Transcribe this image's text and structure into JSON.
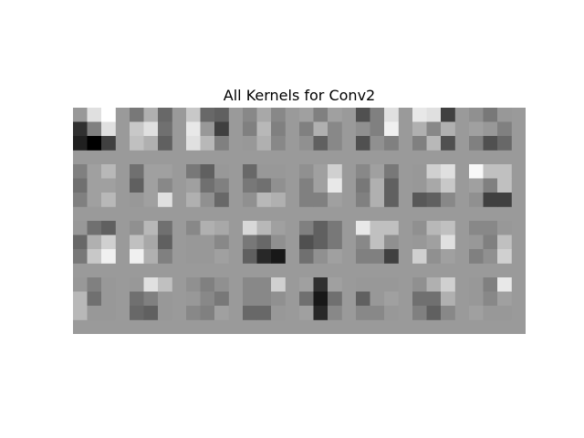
{
  "chart_data": {
    "type": "heatmap",
    "title": "All Kernels for Conv2",
    "colormap": "gray",
    "grid": {
      "rows": 4,
      "cols": 8
    },
    "kernel_size": [
      3,
      3
    ],
    "value_range": [
      0,
      255
    ],
    "background_value": 154,
    "kernels": [
      [
        [
          [
            152,
            224,
            255
          ],
          [
            48,
            128,
            224
          ],
          [
            32,
            0,
            64
          ]
        ],
        [
          [
            120,
            176,
            104
          ],
          [
            200,
            224,
            112
          ],
          [
            192,
            176,
            96
          ]
        ],
        [
          [
            200,
            104,
            96
          ],
          [
            232,
            152,
            64
          ],
          [
            224,
            184,
            128
          ]
        ],
        [
          [
            136,
            168,
            136
          ],
          [
            128,
            184,
            128
          ],
          [
            152,
            176,
            136
          ]
        ],
        [
          [
            160,
            128,
            160
          ],
          [
            128,
            176,
            136
          ],
          [
            144,
            96,
            136
          ]
        ],
        [
          [
            80,
            128,
            224
          ],
          [
            144,
            128,
            240
          ],
          [
            80,
            144,
            128
          ]
        ],
        [
          [
            232,
            224,
            64
          ],
          [
            176,
            136,
            176
          ],
          [
            128,
            184,
            80
          ]
        ],
        [
          [
            144,
            120,
            152
          ],
          [
            160,
            152,
            128
          ],
          [
            128,
            80,
            104
          ]
        ]
      ],
      [
        [
          [
            128,
            160,
            184
          ],
          [
            112,
            160,
            160
          ],
          [
            128,
            160,
            184
          ]
        ],
        [
          [
            112,
            160,
            160
          ],
          [
            96,
            160,
            136
          ],
          [
            152,
            160,
            224
          ]
        ],
        [
          [
            120,
            96,
            152
          ],
          [
            160,
            112,
            128
          ],
          [
            176,
            144,
            104
          ]
        ],
        [
          [
            104,
            152,
            152
          ],
          [
            120,
            112,
            144
          ],
          [
            144,
            184,
            176
          ]
        ],
        [
          [
            144,
            160,
            208
          ],
          [
            128,
            160,
            232
          ],
          [
            128,
            128,
            160
          ]
        ],
        [
          [
            136,
            160,
            120
          ],
          [
            120,
            176,
            96
          ],
          [
            128,
            176,
            96
          ]
        ],
        [
          [
            152,
            208,
            224
          ],
          [
            152,
            168,
            200
          ],
          [
            88,
            96,
            136
          ]
        ],
        [
          [
            248,
            192,
            192
          ],
          [
            160,
            128,
            192
          ],
          [
            144,
            64,
            64
          ]
        ]
      ],
      [
        [
          [
            152,
            112,
            96
          ],
          [
            104,
            176,
            208
          ],
          [
            120,
            200,
            240
          ]
        ],
        [
          [
            144,
            184,
            112
          ],
          [
            192,
            168,
            96
          ],
          [
            240,
            176,
            128
          ]
        ],
        [
          [
            136,
            176,
            168
          ],
          [
            152,
            152,
            136
          ],
          [
            152,
            152,
            160
          ]
        ],
        [
          [
            216,
            184,
            160
          ],
          [
            120,
            104,
            144
          ],
          [
            96,
            40,
            24
          ]
        ],
        [
          [
            128,
            96,
            120
          ],
          [
            80,
            96,
            120
          ],
          [
            112,
            144,
            160
          ]
        ],
        [
          [
            232,
            192,
            192
          ],
          [
            136,
            192,
            144
          ],
          [
            128,
            128,
            64
          ]
        ],
        [
          [
            144,
            184,
            192
          ],
          [
            152,
            160,
            224
          ],
          [
            208,
            144,
            160
          ]
        ],
        [
          [
            136,
            136,
            152
          ],
          [
            152,
            128,
            192
          ],
          [
            128,
            144,
            208
          ]
        ]
      ],
      [
        [
          [
            152,
            128,
            152
          ],
          [
            184,
            112,
            152
          ],
          [
            184,
            152,
            152
          ]
        ],
        [
          [
            152,
            224,
            192
          ],
          [
            112,
            128,
            152
          ],
          [
            104,
            96,
            152
          ]
        ],
        [
          [
            144,
            128,
            144
          ],
          [
            152,
            136,
            120
          ],
          [
            136,
            128,
            160
          ]
        ],
        [
          [
            136,
            136,
            208
          ],
          [
            136,
            136,
            144
          ],
          [
            104,
            104,
            152
          ]
        ],
        [
          [
            160,
            48,
            160
          ],
          [
            112,
            24,
            112
          ],
          [
            160,
            40,
            136
          ]
        ],
        [
          [
            152,
            152,
            152
          ],
          [
            96,
            152,
            160
          ],
          [
            136,
            136,
            152
          ]
        ],
        [
          [
            144,
            176,
            208
          ],
          [
            112,
            112,
            176
          ],
          [
            128,
            96,
            136
          ]
        ],
        [
          [
            152,
            128,
            232
          ],
          [
            152,
            136,
            160
          ],
          [
            160,
            152,
            152
          ]
        ]
      ]
    ]
  }
}
